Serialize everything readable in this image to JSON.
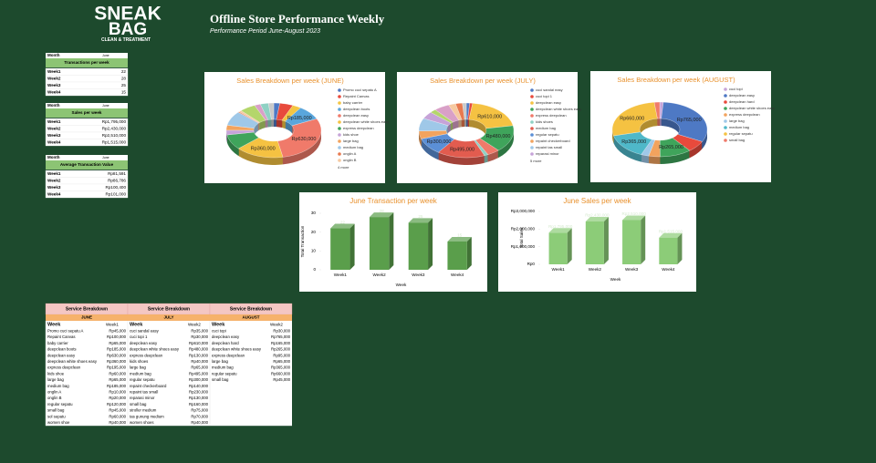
{
  "header": {
    "logo_top": "SNEAK",
    "logo_bottom": "BAG",
    "logo_tagline": "CLEAN & TREATMENT",
    "title": "Offline Store Performance Weekly",
    "subtitle": "Performance Period June-August 2023"
  },
  "summary_tables": [
    {
      "month_label": "Month",
      "month_value": "June",
      "title": "Transactions per week",
      "rows": [
        [
          "Week1",
          "22"
        ],
        [
          "Week2",
          "28"
        ],
        [
          "Week3",
          "25"
        ],
        [
          "Week4",
          "15"
        ]
      ]
    },
    {
      "month_label": "Month",
      "month_value": "June",
      "title": "Sales per week",
      "rows": [
        [
          "Week1",
          "Rp1,795,000"
        ],
        [
          "Week2",
          "Rp2,430,000"
        ],
        [
          "Week3",
          "Rp2,510,000"
        ],
        [
          "Week4",
          "Rp1,515,000"
        ]
      ]
    },
    {
      "month_label": "Month",
      "month_value": "June",
      "title": "Average Transaction Value",
      "rows": [
        [
          "Week1",
          "Rp81,591"
        ],
        [
          "Week2",
          "Rp86,786"
        ],
        [
          "Week3",
          "Rp100,400"
        ],
        [
          "Week4",
          "Rp101,000"
        ]
      ]
    }
  ],
  "chart_data": [
    {
      "type": "pie",
      "title": "Sales Breakdown per week (JUNE)",
      "categories": [
        "Promo cuci sepatu A",
        "Repaint Canvas",
        "baby carrier",
        "deepclean boots",
        "deepclean easy",
        "deepclean white shoes easy",
        "express deepclean",
        "kids shoe",
        "large bag",
        "medium bag",
        "onglin A",
        "onglin B",
        "regular sepatu",
        "small bag",
        "sol sepatu",
        "women shoe"
      ],
      "values": [
        45000,
        100000,
        65000,
        185000,
        630000,
        360000,
        195000,
        60000,
        65000,
        185000,
        10000,
        20000,
        120000,
        45000,
        60000,
        40000
      ],
      "value_labels": [
        null,
        null,
        null,
        "Rp185,000",
        "Rp630,000",
        "Rp360,000",
        null,
        null,
        null,
        null,
        null,
        null,
        null,
        null,
        null,
        null
      ],
      "colors": [
        "#4e79c4",
        "#e84a3c",
        "#f4c542",
        "#5aa6dc",
        "#f07a6a",
        "#f5c242",
        "#3fa45b",
        "#c6a3d8",
        "#f2a35e",
        "#9fc8e8",
        "#e8794f",
        "#f6c9a0",
        "#b4d66b",
        "#d9a0c7",
        "#8fd1c4",
        "#c9c9c9"
      ],
      "legend_more": "4 more"
    },
    {
      "type": "pie",
      "title": "Sales Breakdown per week (JULY)",
      "categories": [
        "cuci sandal easy",
        "cuci topi 1",
        "deepclean easy",
        "deepclean white shoes easy",
        "express deepclean",
        "kids shoes",
        "medium bag",
        "regular sepatu",
        "repaint checkerboard",
        "repaint tas small",
        "reparasi minor",
        "large bag",
        "small bag",
        "stroller medium",
        "tas gunung medium",
        "women shoes"
      ],
      "values": [
        35000,
        30000,
        610000,
        480000,
        130000,
        40000,
        495000,
        300000,
        140000,
        230000,
        130000,
        65000,
        160000,
        75000,
        70000,
        40000
      ],
      "value_labels": [
        null,
        null,
        "Rp610,000",
        "Rp480,000",
        null,
        null,
        "Rp495,000",
        "Rp300,000",
        null,
        null,
        null,
        null,
        null,
        null,
        null,
        null
      ],
      "colors": [
        "#4e79c4",
        "#e84a3c",
        "#f5c242",
        "#3fa45b",
        "#f07a6a",
        "#8fd1c4",
        "#e25c4f",
        "#5b8fd6",
        "#f2a35e",
        "#9fc8e8",
        "#c6a3d8",
        "#b4d66b",
        "#d9a0c7",
        "#f6c9a0",
        "#e8794f",
        "#c9c9c9"
      ],
      "legend_more": "5 more"
    },
    {
      "type": "pie",
      "title": "Sales Breakdown per week (AUGUST)",
      "categories": [
        "cuci topi",
        "deepclean easy",
        "deepclean hard",
        "deepclean white shoes easy",
        "express deepclean",
        "large bag",
        "medium bag",
        "regular sepatu",
        "small bag"
      ],
      "values": [
        30000,
        765000,
        165000,
        265000,
        95000,
        65000,
        365000,
        660000,
        45000
      ],
      "value_labels": [
        null,
        "Rp765,000",
        null,
        "Rp265,000",
        null,
        null,
        "Rp365,000",
        "Rp660,000",
        null
      ],
      "colors": [
        "#c6a3d8",
        "#4e79c4",
        "#e84a3c",
        "#3fa45b",
        "#f2a35e",
        "#9fc8e8",
        "#4fb8c9",
        "#f5c242",
        "#f07a6a"
      ]
    },
    {
      "type": "bar",
      "title": "June Transaction per week",
      "x_label": "Week",
      "y_label": "Total Transaction",
      "categories": [
        "Week1",
        "Week2",
        "Week3",
        "Week4"
      ],
      "values": [
        22,
        28,
        25,
        15
      ],
      "color": "#5a9e4b",
      "ylim": [
        0,
        30
      ],
      "yticks": [
        0,
        10,
        20,
        30
      ],
      "grid": false
    },
    {
      "type": "bar",
      "title": "June Sales per week",
      "x_label": "Week",
      "y_label": "Total Sales",
      "categories": [
        "Week1",
        "Week2",
        "Week3",
        "Week4"
      ],
      "values": [
        1795000,
        2430000,
        2510000,
        1515000
      ],
      "value_labels": [
        "Rp1,795,000",
        "Rp2,430,000",
        "Rp2,510,000",
        "Rp1,515,000"
      ],
      "color": "#8ccc78",
      "ylim": [
        0,
        3000000
      ],
      "yticks": [
        {
          "value": 0,
          "label": "Rp0"
        },
        {
          "value": 1000000,
          "label": "Rp1,000,000"
        },
        {
          "value": 2000000,
          "label": "Rp2,000,000"
        },
        {
          "value": 3000000,
          "label": "Rp3,000,000"
        }
      ],
      "grid": false
    }
  ],
  "service_table": {
    "columns": [
      {
        "header": "Service Breakdown",
        "month": "JUNE",
        "week_header": "Week",
        "week_value": "Week1",
        "rows": [
          [
            "Promo cuci sepatu A",
            "Rp45,000"
          ],
          [
            "Repaint Canvas",
            "Rp100,000"
          ],
          [
            "baby carrier",
            "Rp65,000"
          ],
          [
            "deepclean boots",
            "Rp185,000"
          ],
          [
            "deepclean easy",
            "Rp630,000"
          ],
          [
            "deepclean white shoes easy",
            "Rp360,000"
          ],
          [
            "express deepclean",
            "Rp195,000"
          ],
          [
            "kids shoe",
            "Rp60,000"
          ],
          [
            "large bag",
            "Rp65,000"
          ],
          [
            "medium bag",
            "Rp185,000"
          ],
          [
            "onglin A",
            "Rp10,000"
          ],
          [
            "onglin B",
            "Rp20,000"
          ],
          [
            "regular sepatu",
            "Rp120,000"
          ],
          [
            "small bag",
            "Rp45,000"
          ],
          [
            "sol sepatu",
            "Rp60,000"
          ],
          [
            "women shoe",
            "Rp40,000"
          ]
        ]
      },
      {
        "header": "Service Breakdown",
        "month": "JULY",
        "week_header": "Week",
        "week_value": "Week2",
        "rows": [
          [
            "cuci sandal easy",
            "Rp35,000"
          ],
          [
            "cuci topi 1",
            "Rp30,000"
          ],
          [
            "deepclean easy",
            "Rp610,000"
          ],
          [
            "deepclean white shoes easy",
            "Rp480,000"
          ],
          [
            "express deepclean",
            "Rp130,000"
          ],
          [
            "kids shoes",
            "Rp40,000"
          ],
          [
            "large bag",
            "Rp65,000"
          ],
          [
            "medium bag",
            "Rp495,000"
          ],
          [
            "regular sepatu",
            "Rp300,000"
          ],
          [
            "repaint checkerboard",
            "Rp140,000"
          ],
          [
            "repaint tas small",
            "Rp230,000"
          ],
          [
            "reparasi minor",
            "Rp130,000"
          ],
          [
            "small bag",
            "Rp160,000"
          ],
          [
            "stroller medium",
            "Rp75,000"
          ],
          [
            "tas gunung medium",
            "Rp70,000"
          ],
          [
            "women shoes",
            "Rp40,000"
          ]
        ]
      },
      {
        "header": "Service Breakdown",
        "month": "AUGUST",
        "week_header": "Week",
        "week_value": "Week2",
        "rows": [
          [
            "cuci topi",
            "Rp30,000"
          ],
          [
            "deepclean easy",
            "Rp765,000"
          ],
          [
            "deepclean hard",
            "Rp165,000"
          ],
          [
            "deepclean white shoes easy",
            "Rp265,000"
          ],
          [
            "express deepclean",
            "Rp95,000"
          ],
          [
            "large bag",
            "Rp65,000"
          ],
          [
            "medium bag",
            "Rp365,000"
          ],
          [
            "regular sepatu",
            "Rp660,000"
          ],
          [
            "small bag",
            "Rp45,000"
          ]
        ]
      }
    ]
  }
}
